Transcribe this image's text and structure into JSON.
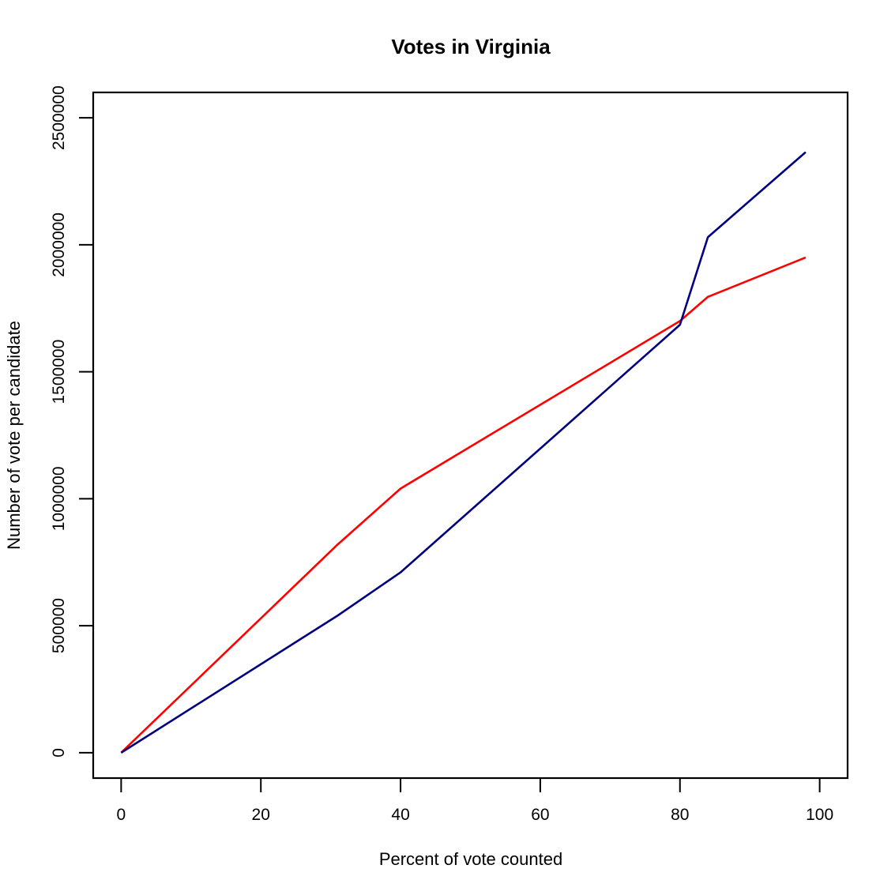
{
  "chart_data": {
    "type": "line",
    "title": "Votes in Virginia",
    "xlabel": "Percent of vote counted",
    "ylabel": "Number of vote per candidate",
    "xlim": [
      -4,
      104
    ],
    "ylim": [
      -100000,
      2600000
    ],
    "x_ticks": [
      0,
      20,
      40,
      60,
      80,
      100
    ],
    "y_ticks": [
      0,
      500000,
      1000000,
      1500000,
      2000000,
      2500000
    ],
    "x_tick_labels": [
      "0",
      "20",
      "40",
      "60",
      "80",
      "100"
    ],
    "y_tick_labels": [
      "0",
      "500000",
      "1000000",
      "1500000",
      "2000000",
      "2500000"
    ],
    "grid": false,
    "series": [
      {
        "color": "#ff0000",
        "x": [
          0,
          31,
          40,
          80,
          84,
          98
        ],
        "values": [
          0,
          820000,
          1040000,
          1700000,
          1795000,
          1950000
        ]
      },
      {
        "color": "#000080",
        "x": [
          0,
          31,
          40,
          80,
          84,
          98
        ],
        "values": [
          0,
          540000,
          710000,
          1685000,
          2030000,
          2365000
        ]
      }
    ]
  }
}
